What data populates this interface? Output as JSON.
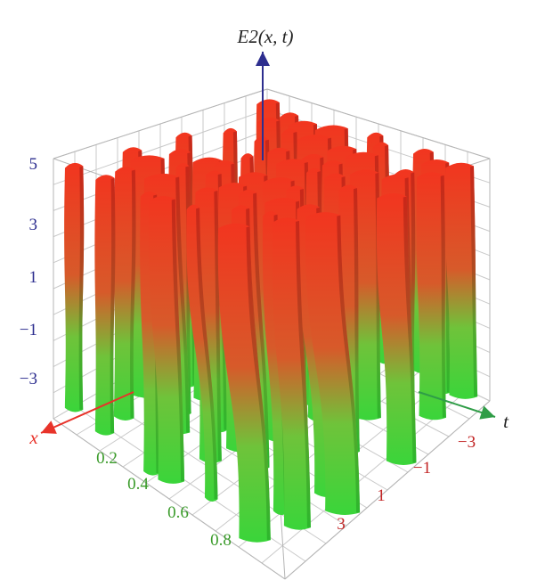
{
  "chart_data": {
    "type": "surface3d",
    "title": "",
    "zlabel": "E2(x, t)",
    "xlabel": "x",
    "ylabel": "t",
    "z_ticks": [
      "5",
      "3",
      "1",
      "−1",
      "−3"
    ],
    "x_ticks": [
      "0.2",
      "0.4",
      "0.6",
      "0.8"
    ],
    "t_ticks": [
      "−3",
      "−1",
      "1",
      "3"
    ],
    "zlim": [
      -5,
      5
    ],
    "xlim": [
      0,
      1
    ],
    "tlim": [
      -5,
      5
    ],
    "grid": true,
    "colors": {
      "high": "#ee2a23",
      "low": "#3bd23b",
      "z_axis": "#2d2e8f",
      "x_axis": "#e8332a",
      "t_axis": "#2f9d47",
      "x_ticks": "#3a9b2a",
      "t_ticks": "#c22424",
      "z_ticks": "#2d2e8f"
    }
  }
}
